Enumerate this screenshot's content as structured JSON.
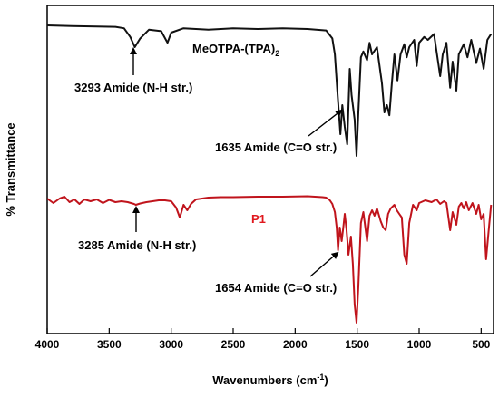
{
  "chart_data": {
    "type": "line",
    "xlabel": "Wavenumbers (cm",
    "xlabel_sup": "-1",
    "xlabel_end": ")",
    "ylabel": "% Transmittance",
    "xlim": [
      4000,
      400
    ],
    "x_reversed": true,
    "xticks": [
      4000,
      3500,
      3000,
      2500,
      2000,
      1500,
      1000,
      500
    ],
    "y_ticks_shown": false,
    "grid": false,
    "colors": {
      "series1": "#111111",
      "series2": "#c0141c",
      "series2_label": "#e0181e"
    },
    "series": [
      {
        "name": "MeOTPA-(TPA)",
        "name_sub": "2",
        "color": "#111111",
        "points": [
          [
            4000,
            0.0
          ],
          [
            3800,
            0.05
          ],
          [
            3600,
            0.08
          ],
          [
            3450,
            0.1
          ],
          [
            3380,
            0.2
          ],
          [
            3330,
            0.8
          ],
          [
            3293,
            1.5
          ],
          [
            3250,
            0.9
          ],
          [
            3180,
            0.3
          ],
          [
            3080,
            0.4
          ],
          [
            3030,
            1.2
          ],
          [
            3000,
            0.5
          ],
          [
            2900,
            0.2
          ],
          [
            2700,
            0.3
          ],
          [
            2500,
            0.2
          ],
          [
            2300,
            0.25
          ],
          [
            2100,
            0.2
          ],
          [
            1900,
            0.25
          ],
          [
            1750,
            0.35
          ],
          [
            1700,
            0.9
          ],
          [
            1680,
            2.0
          ],
          [
            1660,
            4.5
          ],
          [
            1635,
            7.5
          ],
          [
            1620,
            5.5
          ],
          [
            1600,
            7.0
          ],
          [
            1580,
            8.2
          ],
          [
            1560,
            3.0
          ],
          [
            1545,
            4.8
          ],
          [
            1520,
            6.5
          ],
          [
            1505,
            9.0
          ],
          [
            1490,
            6.0
          ],
          [
            1470,
            2.2
          ],
          [
            1450,
            1.8
          ],
          [
            1420,
            2.4
          ],
          [
            1400,
            1.2
          ],
          [
            1380,
            2.0
          ],
          [
            1340,
            1.5
          ],
          [
            1300,
            4.0
          ],
          [
            1280,
            6.0
          ],
          [
            1260,
            5.5
          ],
          [
            1240,
            6.2
          ],
          [
            1220,
            4.0
          ],
          [
            1200,
            2.0
          ],
          [
            1175,
            3.8
          ],
          [
            1150,
            2.0
          ],
          [
            1120,
            1.3
          ],
          [
            1100,
            2.2
          ],
          [
            1080,
            1.5
          ],
          [
            1040,
            1.0
          ],
          [
            1020,
            2.8
          ],
          [
            1000,
            1.2
          ],
          [
            960,
            0.8
          ],
          [
            930,
            1.0
          ],
          [
            880,
            0.6
          ],
          [
            830,
            3.5
          ],
          [
            810,
            2.0
          ],
          [
            780,
            1.2
          ],
          [
            750,
            4.3
          ],
          [
            730,
            2.5
          ],
          [
            700,
            4.5
          ],
          [
            680,
            2.0
          ],
          [
            640,
            1.3
          ],
          [
            610,
            2.2
          ],
          [
            580,
            1.0
          ],
          [
            540,
            2.6
          ],
          [
            510,
            1.6
          ],
          [
            480,
            3.0
          ],
          [
            450,
            1.0
          ],
          [
            420,
            0.6
          ]
        ]
      },
      {
        "name": "P1",
        "color": "#c0141c",
        "points": [
          [
            4000,
            0.3
          ],
          [
            3950,
            0.8
          ],
          [
            3900,
            0.3
          ],
          [
            3860,
            0.1
          ],
          [
            3820,
            0.7
          ],
          [
            3780,
            0.4
          ],
          [
            3740,
            0.9
          ],
          [
            3700,
            0.4
          ],
          [
            3650,
            0.6
          ],
          [
            3600,
            0.4
          ],
          [
            3550,
            0.8
          ],
          [
            3500,
            0.45
          ],
          [
            3450,
            0.7
          ],
          [
            3400,
            0.6
          ],
          [
            3350,
            0.7
          ],
          [
            3300,
            0.9
          ],
          [
            3285,
            1.0
          ],
          [
            3250,
            0.85
          ],
          [
            3200,
            0.7
          ],
          [
            3150,
            0.6
          ],
          [
            3100,
            0.5
          ],
          [
            3050,
            0.5
          ],
          [
            3000,
            0.6
          ],
          [
            2960,
            1.3
          ],
          [
            2930,
            2.4
          ],
          [
            2900,
            1.0
          ],
          [
            2870,
            1.6
          ],
          [
            2840,
            0.9
          ],
          [
            2800,
            0.4
          ],
          [
            2700,
            0.2
          ],
          [
            2600,
            0.15
          ],
          [
            2500,
            0.15
          ],
          [
            2300,
            0.1
          ],
          [
            2100,
            0.1
          ],
          [
            1900,
            0.05
          ],
          [
            1780,
            0.15
          ],
          [
            1750,
            0.2
          ],
          [
            1720,
            0.5
          ],
          [
            1700,
            0.9
          ],
          [
            1680,
            1.8
          ],
          [
            1665,
            3.5
          ],
          [
            1654,
            6.0
          ],
          [
            1640,
            3.5
          ],
          [
            1625,
            5.0
          ],
          [
            1610,
            3.3
          ],
          [
            1600,
            2.0
          ],
          [
            1585,
            3.8
          ],
          [
            1570,
            6.5
          ],
          [
            1550,
            4.5
          ],
          [
            1535,
            7.5
          ],
          [
            1520,
            12.0
          ],
          [
            1505,
            14.0
          ],
          [
            1490,
            10.0
          ],
          [
            1470,
            3.0
          ],
          [
            1450,
            1.8
          ],
          [
            1420,
            5.0
          ],
          [
            1400,
            2.2
          ],
          [
            1380,
            1.6
          ],
          [
            1360,
            2.2
          ],
          [
            1340,
            1.4
          ],
          [
            1310,
            2.8
          ],
          [
            1290,
            3.5
          ],
          [
            1270,
            3.8
          ],
          [
            1250,
            2.0
          ],
          [
            1230,
            1.4
          ],
          [
            1200,
            1.0
          ],
          [
            1180,
            1.6
          ],
          [
            1160,
            2.0
          ],
          [
            1140,
            2.4
          ],
          [
            1120,
            6.5
          ],
          [
            1100,
            7.5
          ],
          [
            1080,
            3.0
          ],
          [
            1050,
            1.0
          ],
          [
            1020,
            1.6
          ],
          [
            1000,
            0.8
          ],
          [
            950,
            0.5
          ],
          [
            900,
            0.7
          ],
          [
            860,
            0.4
          ],
          [
            830,
            0.9
          ],
          [
            800,
            0.6
          ],
          [
            780,
            0.8
          ],
          [
            750,
            3.8
          ],
          [
            730,
            1.8
          ],
          [
            700,
            3.2
          ],
          [
            680,
            1.2
          ],
          [
            660,
            0.8
          ],
          [
            640,
            1.4
          ],
          [
            620,
            0.7
          ],
          [
            600,
            1.6
          ],
          [
            570,
            0.8
          ],
          [
            540,
            2.0
          ],
          [
            520,
            1.0
          ],
          [
            500,
            2.6
          ],
          [
            480,
            2.0
          ],
          [
            460,
            7.0
          ],
          [
            440,
            4.0
          ],
          [
            420,
            1.0
          ]
        ]
      }
    ],
    "annotations": [
      {
        "text": "3293 Amide (N-H str.)",
        "series": 0,
        "x": 3293
      },
      {
        "text": "1635 Amide (C=O str.)",
        "series": 0,
        "x": 1635
      },
      {
        "text": "3285 Amide (N-H str.)",
        "series": 1,
        "x": 3285
      },
      {
        "text": "1654 Amide (C=O str.)",
        "series": 1,
        "x": 1654
      }
    ]
  }
}
